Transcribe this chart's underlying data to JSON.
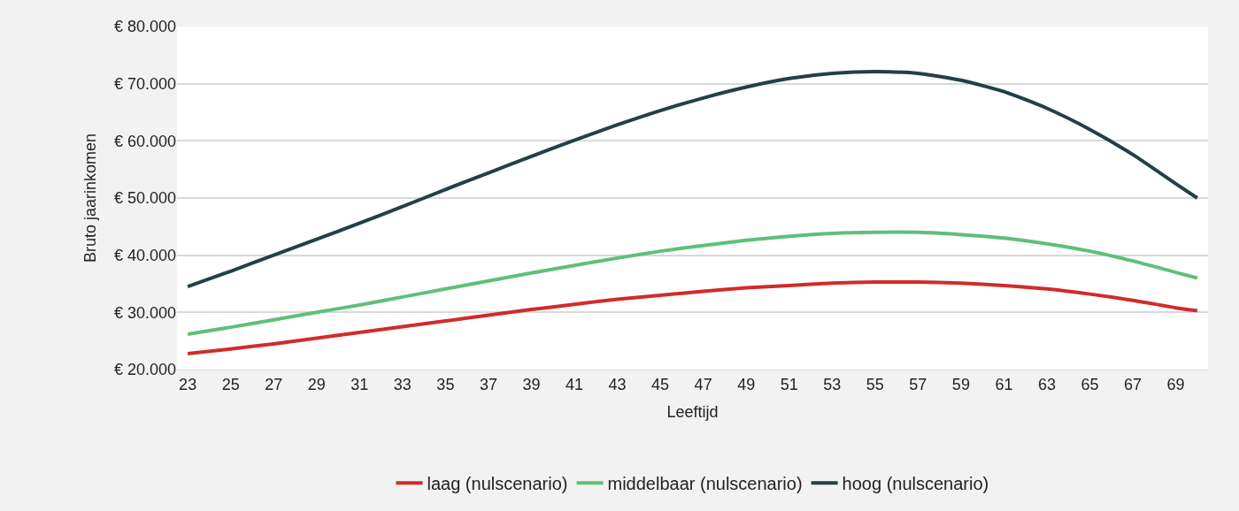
{
  "chart_data": {
    "type": "line",
    "xlabel": "Leeftijd",
    "ylabel": "Bruto jaarinkomen",
    "x": [
      23,
      25,
      27,
      29,
      31,
      33,
      35,
      37,
      39,
      41,
      43,
      45,
      47,
      49,
      51,
      53,
      55,
      57,
      59,
      61,
      63,
      65,
      67,
      69,
      70
    ],
    "series": [
      {
        "name": "laag (nulscenario)",
        "color": "#d12b2b",
        "values": [
          22800,
          23600,
          24500,
          25500,
          26500,
          27500,
          28500,
          29500,
          30500,
          31400,
          32300,
          33000,
          33700,
          34300,
          34700,
          35100,
          35300,
          35300,
          35100,
          34700,
          34100,
          33200,
          32100,
          30800,
          30300
        ]
      },
      {
        "name": "middelbaar (nulscenario)",
        "color": "#5fbf7a",
        "values": [
          26200,
          27400,
          28700,
          30000,
          31300,
          32700,
          34100,
          35500,
          36900,
          38200,
          39500,
          40700,
          41700,
          42600,
          43300,
          43800,
          44000,
          44000,
          43600,
          43000,
          42000,
          40700,
          39000,
          37000,
          36000
        ]
      },
      {
        "name": "hoog (nulscenario)",
        "color": "#243f47",
        "values": [
          34500,
          37200,
          40000,
          42800,
          45600,
          48500,
          51500,
          54400,
          57300,
          60100,
          62800,
          65300,
          67500,
          69400,
          70900,
          71800,
          72100,
          71800,
          70600,
          68600,
          65700,
          62000,
          57600,
          52500,
          50000
        ]
      }
    ],
    "xlim": [
      22.5,
      70.5
    ],
    "xticks": [
      23,
      25,
      27,
      29,
      31,
      33,
      35,
      37,
      39,
      41,
      43,
      45,
      47,
      49,
      51,
      53,
      55,
      57,
      59,
      61,
      63,
      65,
      67,
      69
    ],
    "ylim": [
      20000,
      80000
    ],
    "yticks": [
      {
        "value": 20000,
        "label": "€ 20.000"
      },
      {
        "value": 30000,
        "label": "€ 30.000"
      },
      {
        "value": 40000,
        "label": "€ 40.000"
      },
      {
        "value": 50000,
        "label": "€ 50.000"
      },
      {
        "value": 60000,
        "label": "€ 60.000"
      },
      {
        "value": 70000,
        "label": "€ 70.000"
      },
      {
        "value": 80000,
        "label": "€ 80.000"
      }
    ],
    "grid": "y",
    "legend": "bottom",
    "marker": "none",
    "line_style": "solid"
  }
}
